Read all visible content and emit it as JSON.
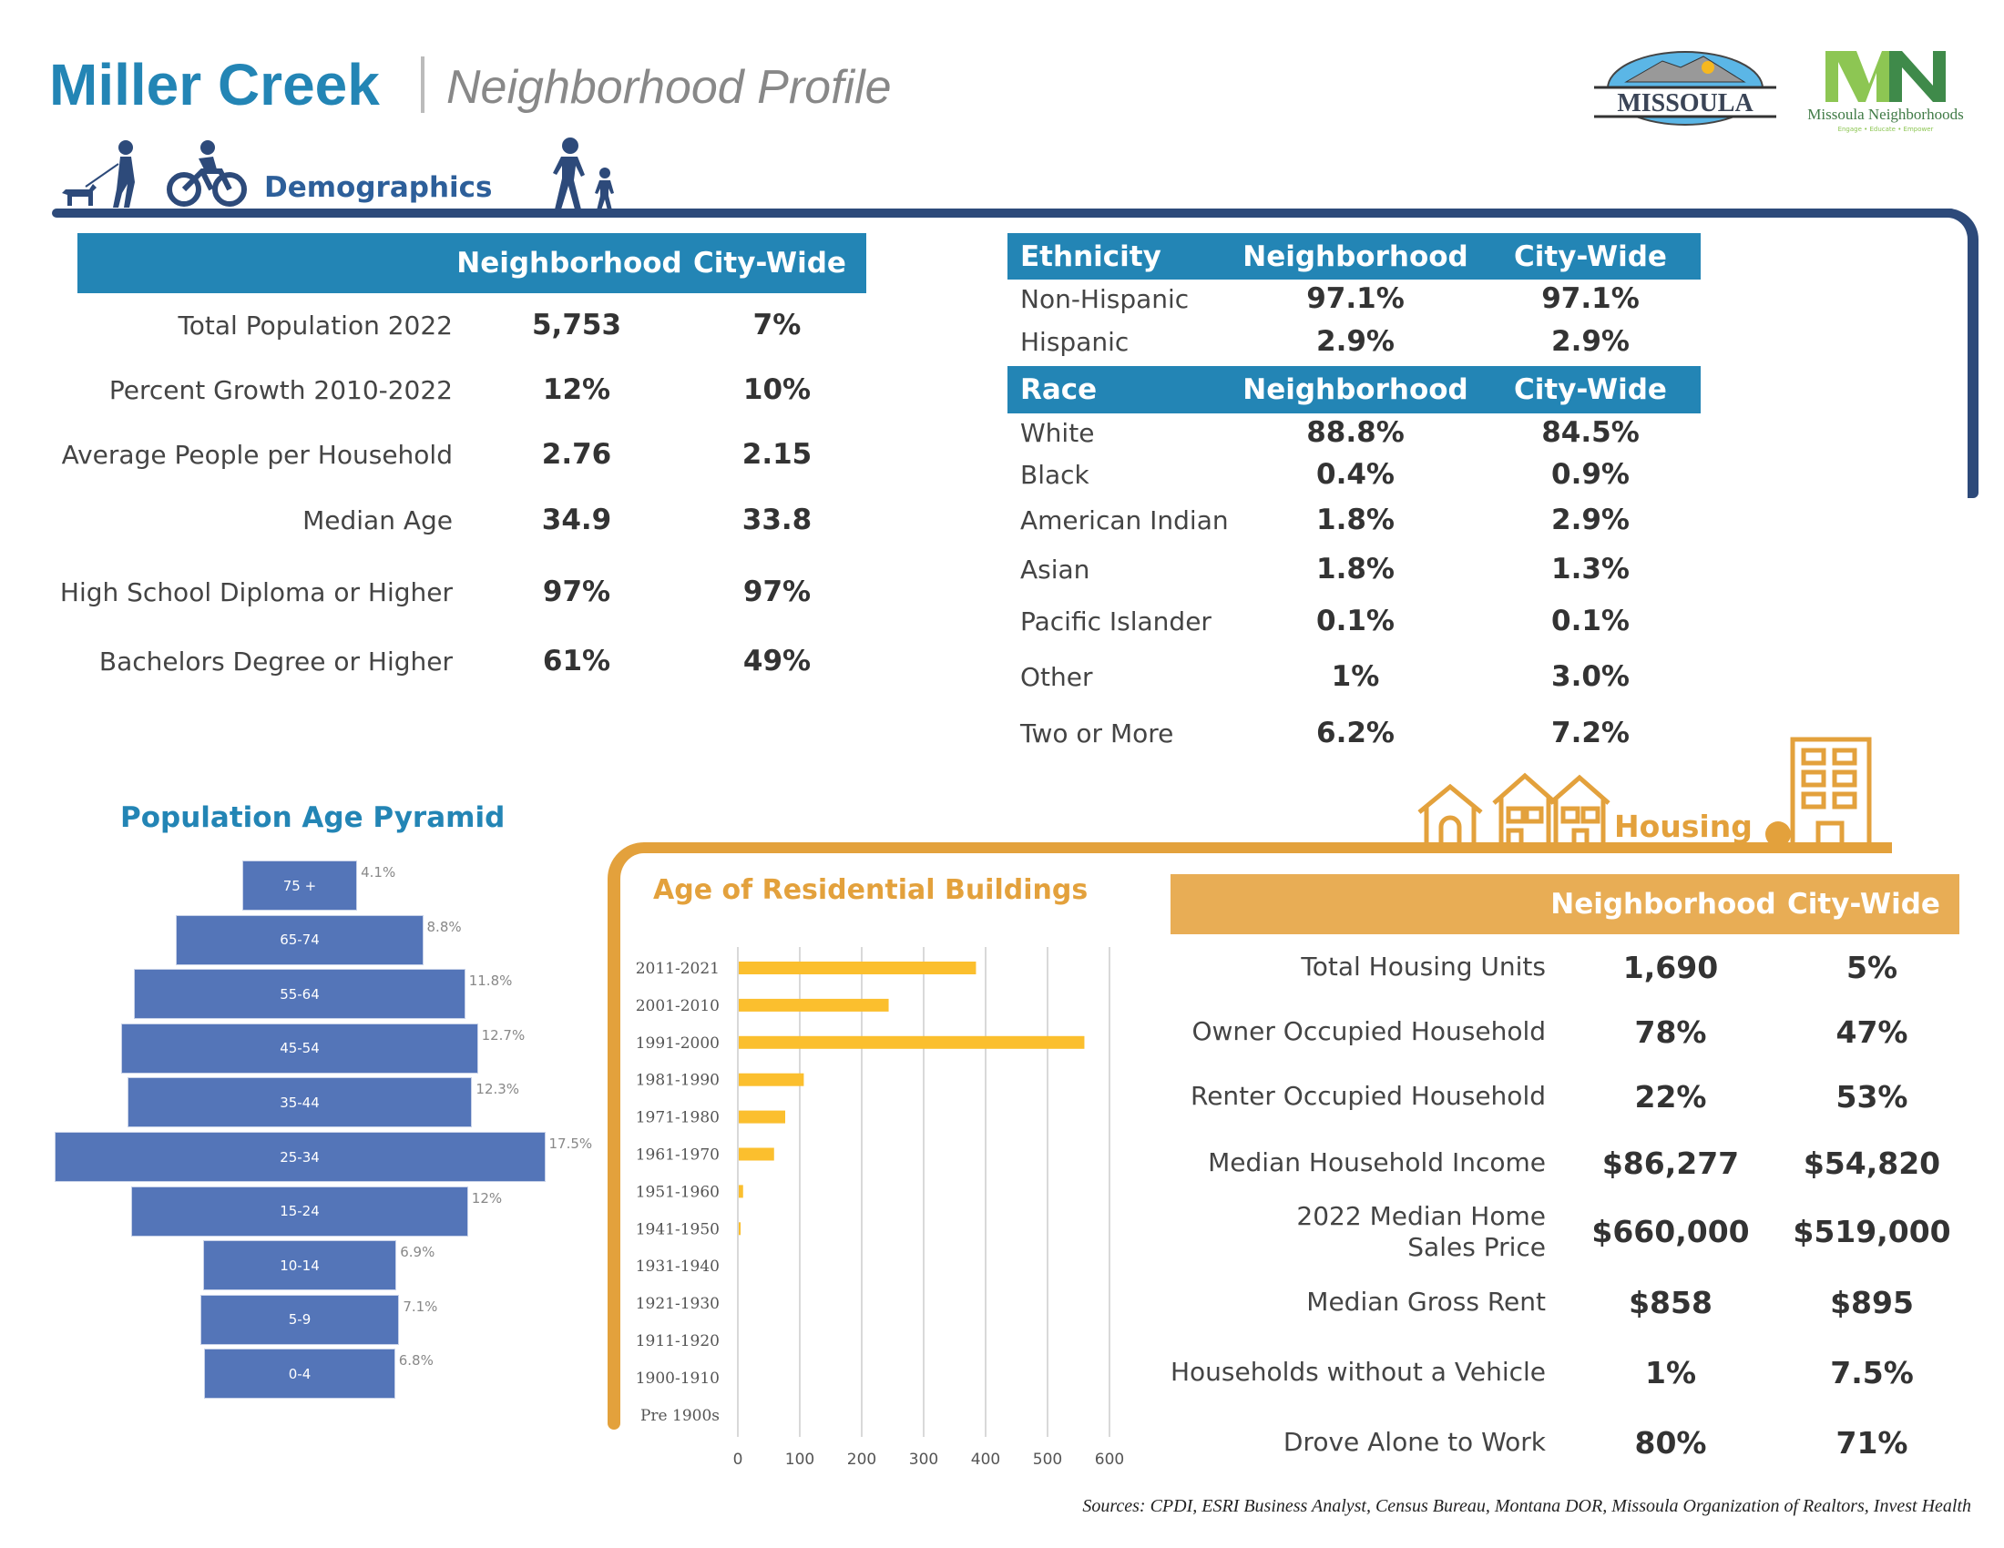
{
  "header": {
    "title": "Miller Creek",
    "subtitle": "Neighborhood Profile"
  },
  "logos": {
    "missoula": "MISSOULA",
    "mn_mark": "MN",
    "mn_name": "Missoula Neighborhoods",
    "mn_tagline": "Engage • Educate • Empower"
  },
  "demographics": {
    "section_label": "Demographics",
    "columns": [
      "Neighborhood",
      "City-Wide"
    ],
    "rows": [
      {
        "label": "Total Population 2022",
        "neighborhood": "5,753",
        "city": "7%"
      },
      {
        "label": "Percent Growth 2010-2022",
        "neighborhood": "12%",
        "city": "10%"
      },
      {
        "label": "Average People per Household",
        "neighborhood": "2.76",
        "city": "2.15"
      },
      {
        "label": "Median Age",
        "neighborhood": "34.9",
        "city": "33.8"
      },
      {
        "label": "High School Diploma or Higher",
        "neighborhood": "97%",
        "city": "97%"
      },
      {
        "label": "Bachelors Degree or Higher",
        "neighborhood": "61%",
        "city": "49%"
      }
    ]
  },
  "ethnicity": {
    "header": [
      "Ethnicity",
      "Neighborhood",
      "City-Wide"
    ],
    "rows": [
      {
        "label": "Non-Hispanic",
        "neighborhood": "97.1%",
        "city": "97.1%"
      },
      {
        "label": "Hispanic",
        "neighborhood": "2.9%",
        "city": "2.9%"
      }
    ]
  },
  "race": {
    "header": [
      "Race",
      "Neighborhood",
      "City-Wide"
    ],
    "rows": [
      {
        "label": "White",
        "neighborhood": "88.8%",
        "city": "84.5%"
      },
      {
        "label": "Black",
        "neighborhood": "0.4%",
        "city": "0.9%"
      },
      {
        "label": "American Indian",
        "neighborhood": "1.8%",
        "city": "2.9%"
      },
      {
        "label": "Asian",
        "neighborhood": "1.8%",
        "city": "1.3%"
      },
      {
        "label": "Pacific Islander",
        "neighborhood": "0.1%",
        "city": "0.1%"
      },
      {
        "label": "Other",
        "neighborhood": "1%",
        "city": "3.0%"
      },
      {
        "label": "Two or More",
        "neighborhood": "6.2%",
        "city": "7.2%"
      }
    ]
  },
  "housing": {
    "section_label": "Housing",
    "columns": [
      "Neighborhood",
      "City-Wide"
    ],
    "rows": [
      {
        "label": "Total Housing Units",
        "neighborhood": "1,690",
        "city": "5%"
      },
      {
        "label": "Owner Occupied Household",
        "neighborhood": "78%",
        "city": "47%"
      },
      {
        "label": "Renter Occupied Household",
        "neighborhood": "22%",
        "city": "53%"
      },
      {
        "label": "Median Household Income",
        "neighborhood": "$86,277",
        "city": "$54,820"
      },
      {
        "label": "2022 Median Home Sales Price",
        "neighborhood": "$660,000",
        "city": "$519,000"
      },
      {
        "label": "Median Gross Rent",
        "neighborhood": "$858",
        "city": "$895"
      },
      {
        "label": "Households without a Vehicle",
        "neighborhood": "1%",
        "city": "7.5%"
      },
      {
        "label": "Drove Alone to Work",
        "neighborhood": "80%",
        "city": "71%"
      }
    ]
  },
  "colors": {
    "brand_blue": "#2385b5",
    "navy": "#2d4a7a",
    "orange": "#e3a13c",
    "pyramid_bar": "#5475b8",
    "building_bar": "#fbbf2e"
  },
  "chart_data": [
    {
      "type": "bar",
      "orientation": "horizontal-centered",
      "title": "Population Age Pyramid",
      "categories": [
        "75 +",
        "65-74",
        "55-64",
        "45-54",
        "35-44",
        "25-34",
        "15-24",
        "10-14",
        "5-9",
        "0-4"
      ],
      "values": [
        4.1,
        8.8,
        11.8,
        12.7,
        12.3,
        17.5,
        12,
        6.9,
        7.1,
        6.8
      ],
      "data_labels": [
        "4.1%",
        "8.8%",
        "11.8%",
        "12.7%",
        "12.3%",
        "17.5%",
        "12%",
        "6.9%",
        "7.1%",
        "6.8%"
      ],
      "grid": false
    },
    {
      "type": "bar",
      "orientation": "horizontal",
      "title": "Age of Residential Buildings",
      "categories": [
        "2011-2021",
        "2001-2010",
        "1991-2000",
        "1981-1990",
        "1971-1980",
        "1961-1970",
        "1951-1960",
        "1941-1950",
        "1931-1940",
        "1921-1930",
        "1911-1920",
        "1900-1910",
        "Pre 1900s"
      ],
      "values": [
        383,
        242,
        558,
        105,
        75,
        57,
        7,
        3,
        0,
        0,
        0,
        0,
        0
      ],
      "xlim": [
        0,
        600
      ],
      "xticks": [
        "0",
        "100",
        "200",
        "300",
        "400",
        "500",
        "600"
      ],
      "grid": true
    }
  ],
  "sources": "Sources: CPDI, ESRI Business Analyst, Census Bureau, Montana DOR, Missoula Organization of Realtors, Invest Health"
}
